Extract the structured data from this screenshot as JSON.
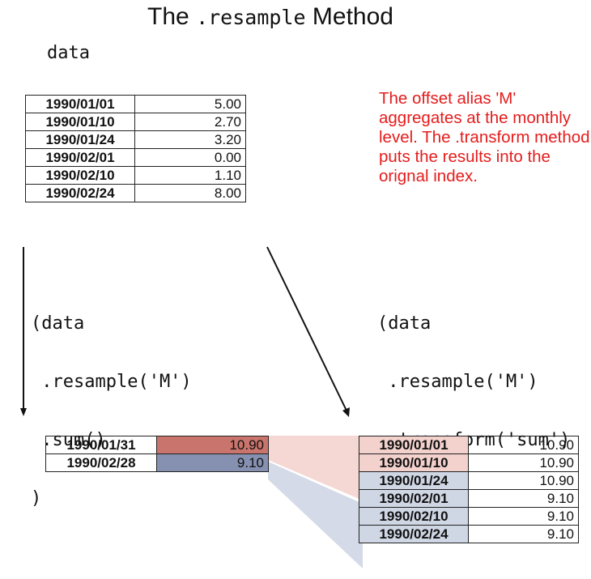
{
  "title": {
    "prefix": "The",
    "code": ".resample",
    "suffix": "Method"
  },
  "data_label": "data",
  "note": "The offset alias 'M' aggregates at the monthly level. The .transform method puts the results into the orignal index.",
  "input_table": [
    {
      "date": "1990/01/01",
      "value": "5.00"
    },
    {
      "date": "1990/01/10",
      "value": "2.70"
    },
    {
      "date": "1990/01/24",
      "value": "3.20"
    },
    {
      "date": "1990/02/01",
      "value": "0.00"
    },
    {
      "date": "1990/02/10",
      "value": "1.10"
    },
    {
      "date": "1990/02/24",
      "value": "8.00"
    }
  ],
  "code_sum": [
    "(data",
    " .resample('M')",
    " .sum()",
    ")"
  ],
  "code_transform": [
    "(data",
    " .resample('M')",
    " .transform('sum')",
    ")"
  ],
  "sum_table": [
    {
      "date": "1990/01/31",
      "value": "10.90"
    },
    {
      "date": "1990/02/28",
      "value": "9.10"
    }
  ],
  "transform_table": [
    {
      "date": "1990/01/01",
      "value": "10.90"
    },
    {
      "date": "1990/01/10",
      "value": "10.90"
    },
    {
      "date": "1990/01/24",
      "value": "10.90"
    },
    {
      "date": "1990/02/01",
      "value": "9.10"
    },
    {
      "date": "1990/02/10",
      "value": "9.10"
    },
    {
      "date": "1990/02/24",
      "value": "9.10"
    }
  ],
  "colors": {
    "jan_dark": "#c9746c",
    "feb_dark": "#8691b1",
    "jan_light": "#f3d1cd",
    "feb_light": "#cfd6e4",
    "note": "#e51c1c"
  }
}
